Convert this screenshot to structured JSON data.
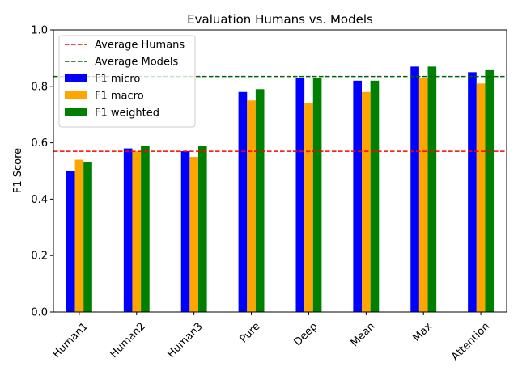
{
  "chart_data": {
    "type": "bar",
    "title": "Evaluation Humans vs. Models",
    "xlabel": "",
    "ylabel": "F1 Score",
    "ylim": [
      0,
      1.0
    ],
    "yticks": [
      "0.0",
      "0.2",
      "0.4",
      "0.6",
      "0.8",
      "1.0"
    ],
    "categories": [
      "Human1",
      "Human2",
      "Human3",
      "Pure",
      "Deep",
      "Mean",
      "Max",
      "Attention"
    ],
    "category_colors": [
      "#ff0000",
      "#ff0000",
      "#ff0000",
      "#006400",
      "#006400",
      "#006400",
      "#006400",
      "#006400"
    ],
    "series": [
      {
        "name": "F1 micro",
        "color": "#0000ff",
        "values": [
          0.5,
          0.58,
          0.57,
          0.78,
          0.83,
          0.82,
          0.87,
          0.85
        ]
      },
      {
        "name": "F1 macro",
        "color": "#ffa500",
        "values": [
          0.54,
          0.57,
          0.55,
          0.75,
          0.74,
          0.78,
          0.83,
          0.81
        ]
      },
      {
        "name": "F1 weighted",
        "color": "#008000",
        "values": [
          0.53,
          0.59,
          0.59,
          0.79,
          0.83,
          0.82,
          0.87,
          0.86
        ]
      }
    ],
    "reference_lines": [
      {
        "name": "Average Humans",
        "value": 0.57,
        "color": "#ff0000"
      },
      {
        "name": "Average Models",
        "value": 0.835,
        "color": "#006400"
      }
    ],
    "legend_position": "upper-left",
    "grid": false
  }
}
